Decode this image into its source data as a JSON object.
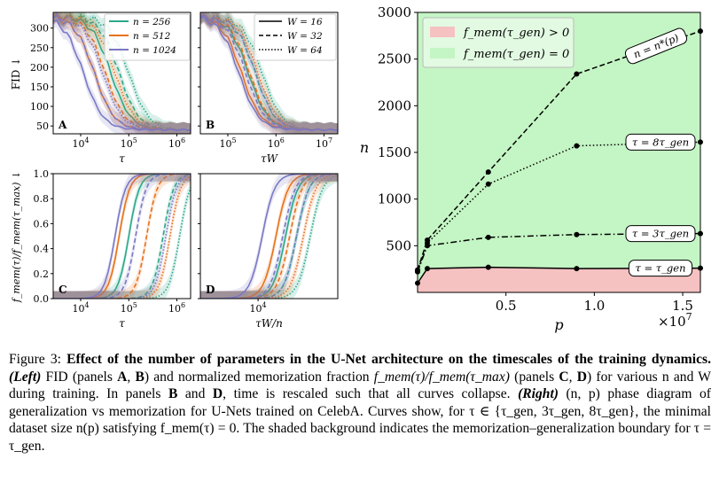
{
  "figure": {
    "left_panels": [
      {
        "label": "A",
        "row": "fid",
        "xscale": "tau",
        "xticks": [
          "10^4",
          "10^5",
          "10^6"
        ],
        "xlabel": "τ"
      },
      {
        "label": "B",
        "row": "fid",
        "xscale": "tauW",
        "xticks": [
          "10^5",
          "10^6",
          "10^7"
        ],
        "xlabel": "τW"
      },
      {
        "label": "C",
        "row": "mem",
        "xscale": "tau",
        "xticks": [
          "10^4",
          "10^5",
          "10^6"
        ],
        "xlabel": "τ"
      },
      {
        "label": "D",
        "row": "mem",
        "xscale": "tauWn",
        "xticks": [
          "10^4"
        ],
        "xlabel": "τW/n"
      }
    ],
    "fid_ylabel": "FID ↓",
    "fid_yticks": [
      "50",
      "100",
      "150",
      "200",
      "250",
      "300"
    ],
    "mem_ylabel": "f_mem(τ)/f_mem(τ_max) ↓",
    "mem_yticks": [
      "0.0",
      "0.2",
      "0.4",
      "0.6",
      "0.8",
      "1.0"
    ],
    "legend_n": [
      {
        "text": "n = 256",
        "color": "#2ca889"
      },
      {
        "text": "n = 512",
        "color": "#e8711c"
      },
      {
        "text": "n = 1024",
        "color": "#7a78c4"
      }
    ],
    "legend_w": [
      {
        "text": "W = 16",
        "dash": "solid"
      },
      {
        "text": "W = 32",
        "dash": "dashed"
      },
      {
        "text": "W = 64",
        "dash": "dotted"
      }
    ]
  },
  "chart_data": {
    "type": "line",
    "xlabel": "p",
    "ylabel": "n",
    "x_exponent": "×10^7",
    "xlim": [
      0,
      16000000
    ],
    "ylim": [
      0,
      3000
    ],
    "xticks": [
      5000000,
      10000000,
      15000000
    ],
    "xtick_labels": [
      "0.5",
      "1.0",
      "1.5"
    ],
    "yticks": [
      500,
      1000,
      1500,
      2000,
      2500,
      3000
    ],
    "legend": [
      {
        "label": "f_mem(τ_gen) > 0",
        "color": "#f5c1c1"
      },
      {
        "label": "f_mem(τ_gen) = 0",
        "color": "#c4f5c4"
      }
    ],
    "series": [
      {
        "name": "n = n*(p)",
        "style": "dashed",
        "x": [
          0,
          550000,
          4000000,
          9000000,
          16000000
        ],
        "y": [
          240,
          560,
          1290,
          2340,
          2800
        ]
      },
      {
        "name": "τ = 8τ_gen",
        "style": "dotted",
        "x": [
          0,
          550000,
          4000000,
          9000000,
          16000000
        ],
        "y": [
          230,
          530,
          1160,
          1570,
          1610
        ]
      },
      {
        "name": "τ = 3τ_gen",
        "style": "dashdot",
        "x": [
          0,
          550000,
          4000000,
          9000000,
          16000000
        ],
        "y": [
          220,
          500,
          590,
          620,
          630
        ]
      },
      {
        "name": "τ = τ_gen",
        "style": "solid",
        "x": [
          0,
          550000,
          4000000,
          9000000,
          16000000
        ],
        "y": [
          100,
          255,
          270,
          255,
          260
        ]
      }
    ]
  },
  "caption": {
    "label": "Figure 3:",
    "title": "Effect of the number of parameters in the U-Net architecture on the timescales of the training dynamics.",
    "left": "(Left)",
    "fid_text": " FID (panels ",
    "A": "A",
    "comma": ", ",
    "B": "B",
    "norm_text": ") and normalized memorization fraction ",
    "frac": "f_mem(τ)/f_mem(τ_max)",
    "panels_cd": " (panels ",
    "C": "C",
    "D": "D",
    "rest1": ") for various n and W during training. In panels ",
    "B2": "B",
    "and": " and ",
    "D2": "D",
    "rest2": ", time is rescaled such that all curves collapse. ",
    "right": "(Right)",
    "rest3": " (n, p) phase diagram of generalization vs memorization for U-Nets trained on CelebA. Curves show, for τ ∈ {τ_gen, 3τ_gen, 8τ_gen}, the minimal dataset size n(p) satisfying f_mem(τ) = 0. The shaded background indicates the memorization–generalization boundary for τ = τ_gen."
  }
}
